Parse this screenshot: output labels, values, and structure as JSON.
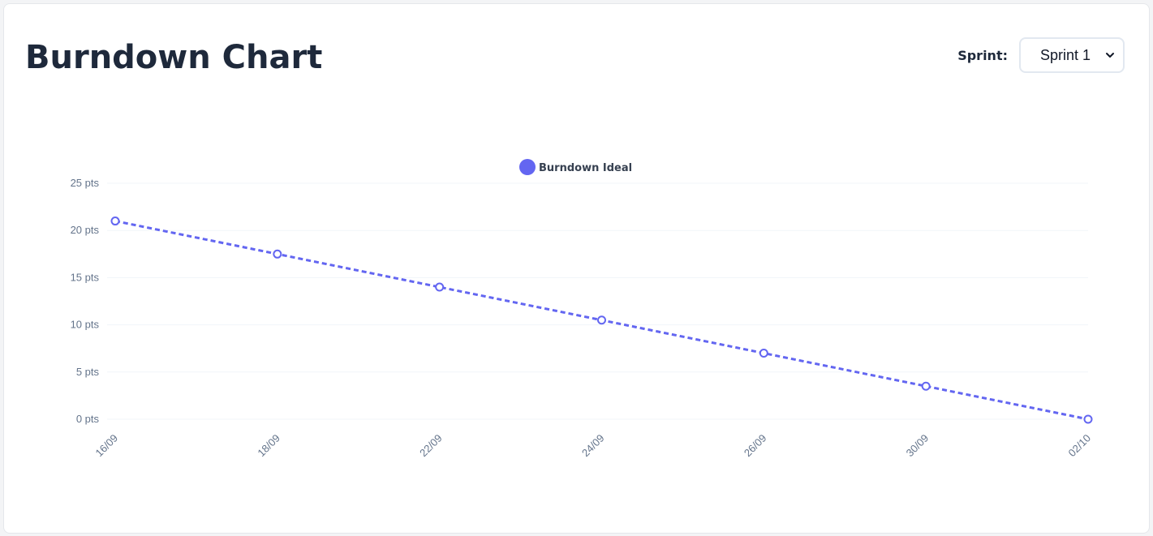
{
  "header": {
    "title": "Burndown Chart",
    "sprint_label": "Sprint:",
    "sprint_selected": "Sprint 1"
  },
  "colors": {
    "series": "#6366f1",
    "grid": "#f1f5f9",
    "tick": "#64748b",
    "title": "#1e293b"
  },
  "chart_data": {
    "type": "line",
    "x": [
      "16/09",
      "18/09",
      "22/09",
      "24/09",
      "26/09",
      "30/09",
      "02/10"
    ],
    "series": [
      {
        "name": "Burndown Ideal",
        "values": [
          21,
          17.5,
          14,
          10.5,
          7,
          3.5,
          0
        ],
        "line_style": "dashed",
        "marker": "hollow-circle"
      }
    ],
    "ylim": [
      0,
      25
    ],
    "yticks": [
      0,
      5,
      10,
      15,
      20,
      25
    ],
    "ytick_suffix": " pts",
    "grid": true,
    "legend_position": "top-center",
    "xlabel": "",
    "ylabel": ""
  }
}
